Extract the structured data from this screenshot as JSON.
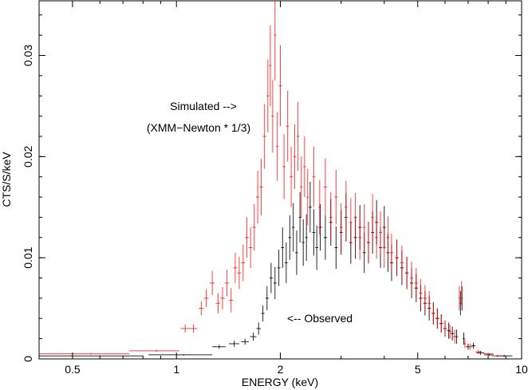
{
  "chart_data": {
    "type": "scatter",
    "title": "",
    "xlabel": "ENERGY (keV)",
    "ylabel": "CTS/S/keV",
    "xscale": "log",
    "xlim": [
      0.4,
      10
    ],
    "ylim": [
      0,
      0.0354
    ],
    "xticks": [
      {
        "v": 0.5,
        "label": "0.5"
      },
      {
        "v": 1,
        "label": "1"
      },
      {
        "v": 2,
        "label": "2"
      },
      {
        "v": 5,
        "label": "5"
      },
      {
        "v": 10,
        "label": "10"
      }
    ],
    "yticks": [
      {
        "v": 0,
        "label": "0"
      },
      {
        "v": 0.01,
        "label": "0.01"
      },
      {
        "v": 0.02,
        "label": "0.02"
      },
      {
        "v": 0.03,
        "label": "0.03"
      }
    ],
    "grid": false,
    "point_format": [
      "energy",
      "energy_halfwidth",
      "rate",
      "rate_error"
    ],
    "annotations": [
      {
        "text": "Simulated -->",
        "at_energy": 1.4,
        "at_rate": 0.025
      },
      {
        "text": "(XMM−Newton * 1/3)",
        "at_energy": 1.37,
        "at_rate": 0.0229
      },
      {
        "text": "<-- Observed",
        "at_energy": 2.4,
        "at_rate": 0.0039
      }
    ],
    "series": [
      {
        "color": "#000000",
        "points": [
          [
            0.6,
            0.2,
            0.0003,
            5e-05
          ],
          [
            1.05,
            0.22,
            0.0004,
            6e-05
          ],
          [
            1.33,
            0.06,
            0.0012,
            0.0002
          ],
          [
            1.47,
            0.05,
            0.0015,
            0.0003
          ],
          [
            1.58,
            0.04,
            0.0017,
            0.0003
          ],
          [
            1.67,
            0.035,
            0.0022,
            0.0004
          ],
          [
            1.73,
            0.025,
            0.003,
            0.0006
          ],
          [
            1.78,
            0.02,
            0.0045,
            0.0008
          ],
          [
            1.83,
            0.02,
            0.006,
            0.0012
          ],
          [
            1.88,
            0.02,
            0.008,
            0.0015
          ],
          [
            1.93,
            0.02,
            0.0075,
            0.0016
          ],
          [
            1.98,
            0.02,
            0.009,
            0.0018
          ],
          [
            2.03,
            0.02,
            0.011,
            0.002
          ],
          [
            2.08,
            0.02,
            0.0095,
            0.002
          ],
          [
            2.13,
            0.02,
            0.012,
            0.0022
          ],
          [
            2.18,
            0.02,
            0.013,
            0.0024
          ],
          [
            2.23,
            0.02,
            0.0105,
            0.0022
          ],
          [
            2.28,
            0.02,
            0.014,
            0.0025
          ],
          [
            2.33,
            0.02,
            0.0115,
            0.0023
          ],
          [
            2.38,
            0.02,
            0.012,
            0.0023
          ],
          [
            2.44,
            0.025,
            0.015,
            0.0025
          ],
          [
            2.5,
            0.025,
            0.0125,
            0.0023
          ],
          [
            2.55,
            0.025,
            0.011,
            0.0022
          ],
          [
            2.61,
            0.03,
            0.013,
            0.0023
          ],
          [
            2.7,
            0.03,
            0.012,
            0.0022
          ],
          [
            2.8,
            0.03,
            0.0135,
            0.0023
          ],
          [
            2.9,
            0.03,
            0.011,
            0.0021
          ],
          [
            3.0,
            0.03,
            0.0125,
            0.0022
          ],
          [
            3.1,
            0.03,
            0.014,
            0.0024
          ],
          [
            3.2,
            0.03,
            0.0115,
            0.0021
          ],
          [
            3.3,
            0.035,
            0.012,
            0.0021
          ],
          [
            3.4,
            0.035,
            0.013,
            0.0022
          ],
          [
            3.5,
            0.035,
            0.0105,
            0.002
          ],
          [
            3.6,
            0.035,
            0.0115,
            0.002
          ],
          [
            3.7,
            0.035,
            0.0125,
            0.0021
          ],
          [
            3.8,
            0.04,
            0.0135,
            0.0022
          ],
          [
            3.9,
            0.04,
            0.011,
            0.002
          ],
          [
            4.0,
            0.04,
            0.013,
            0.0021
          ],
          [
            4.1,
            0.04,
            0.0105,
            0.0019
          ],
          [
            4.2,
            0.045,
            0.0095,
            0.0018
          ],
          [
            4.35,
            0.05,
            0.01,
            0.0018
          ],
          [
            4.5,
            0.05,
            0.009,
            0.0017
          ],
          [
            4.65,
            0.05,
            0.0085,
            0.0016
          ],
          [
            4.8,
            0.05,
            0.0075,
            0.0015
          ],
          [
            4.95,
            0.06,
            0.007,
            0.0014
          ],
          [
            5.1,
            0.06,
            0.006,
            0.0013
          ],
          [
            5.25,
            0.06,
            0.0055,
            0.0012
          ],
          [
            5.4,
            0.06,
            0.005,
            0.0012
          ],
          [
            5.55,
            0.06,
            0.0045,
            0.0011
          ],
          [
            5.7,
            0.07,
            0.004,
            0.001
          ],
          [
            5.85,
            0.07,
            0.0035,
            0.0009
          ],
          [
            6.0,
            0.07,
            0.003,
            0.0008
          ],
          [
            6.15,
            0.07,
            0.0028,
            0.0008
          ],
          [
            6.3,
            0.07,
            0.0025,
            0.0007
          ],
          [
            6.48,
            0.06,
            0.0022,
            0.0007
          ],
          [
            6.65,
            0.03,
            0.0055,
            0.0012
          ],
          [
            6.72,
            0.03,
            0.006,
            0.0012
          ],
          [
            6.8,
            0.05,
            0.002,
            0.0006
          ],
          [
            7.0,
            0.1,
            0.0012,
            0.0003
          ],
          [
            7.25,
            0.1,
            0.0013,
            0.0003
          ],
          [
            7.6,
            0.2,
            0.0006,
            0.0002
          ],
          [
            8.05,
            0.25,
            0.0004,
            0.0001
          ],
          [
            8.9,
            0.5,
            0.0003,
            0.0001
          ]
        ]
      },
      {
        "color": "#ff0000",
        "points": [
          [
            0.565,
            0.165,
            0.0005,
            8e-05
          ],
          [
            0.875,
            0.145,
            0.0008,
            0.0001
          ],
          [
            1.06,
            0.03,
            0.003,
            0.0004
          ],
          [
            1.12,
            0.03,
            0.003,
            0.0004
          ],
          [
            1.18,
            0.02,
            0.005,
            0.0007
          ],
          [
            1.22,
            0.02,
            0.006,
            0.0009
          ],
          [
            1.27,
            0.02,
            0.0075,
            0.0012
          ],
          [
            1.32,
            0.02,
            0.0055,
            0.001
          ],
          [
            1.36,
            0.02,
            0.006,
            0.0011
          ],
          [
            1.4,
            0.02,
            0.0075,
            0.0013
          ],
          [
            1.44,
            0.02,
            0.0058,
            0.0012
          ],
          [
            1.48,
            0.02,
            0.009,
            0.0015
          ],
          [
            1.52,
            0.02,
            0.0085,
            0.0016
          ],
          [
            1.56,
            0.02,
            0.0095,
            0.0018
          ],
          [
            1.6,
            0.02,
            0.012,
            0.002
          ],
          [
            1.64,
            0.02,
            0.011,
            0.002
          ],
          [
            1.68,
            0.02,
            0.013,
            0.0023
          ],
          [
            1.72,
            0.02,
            0.016,
            0.0026
          ],
          [
            1.76,
            0.02,
            0.017,
            0.0028
          ],
          [
            1.8,
            0.02,
            0.022,
            0.0032
          ],
          [
            1.84,
            0.015,
            0.026,
            0.0036
          ],
          [
            1.87,
            0.015,
            0.029,
            0.004
          ],
          [
            1.9,
            0.015,
            0.024,
            0.0036
          ],
          [
            1.93,
            0.015,
            0.032,
            0.0045
          ],
          [
            1.96,
            0.015,
            0.021,
            0.0034
          ],
          [
            2.0,
            0.02,
            0.027,
            0.004
          ],
          [
            2.05,
            0.02,
            0.019,
            0.0032
          ],
          [
            2.1,
            0.02,
            0.023,
            0.0035
          ],
          [
            2.15,
            0.02,
            0.018,
            0.003
          ],
          [
            2.2,
            0.02,
            0.02,
            0.0032
          ],
          [
            2.25,
            0.02,
            0.022,
            0.0034
          ],
          [
            2.3,
            0.02,
            0.017,
            0.003
          ],
          [
            2.35,
            0.02,
            0.019,
            0.003
          ],
          [
            2.4,
            0.02,
            0.016,
            0.0028
          ],
          [
            2.5,
            0.025,
            0.018,
            0.003
          ],
          [
            2.6,
            0.025,
            0.015,
            0.0027
          ],
          [
            2.7,
            0.03,
            0.017,
            0.0028
          ],
          [
            2.8,
            0.03,
            0.014,
            0.0025
          ],
          [
            2.9,
            0.03,
            0.016,
            0.0027
          ],
          [
            3.0,
            0.03,
            0.013,
            0.0024
          ],
          [
            3.1,
            0.03,
            0.015,
            0.0026
          ],
          [
            3.2,
            0.03,
            0.0135,
            0.0024
          ],
          [
            3.3,
            0.035,
            0.014,
            0.0024
          ],
          [
            3.4,
            0.035,
            0.012,
            0.0022
          ],
          [
            3.5,
            0.035,
            0.013,
            0.0023
          ],
          [
            3.6,
            0.035,
            0.0115,
            0.0021
          ],
          [
            3.7,
            0.035,
            0.014,
            0.0023
          ],
          [
            3.8,
            0.04,
            0.012,
            0.0021
          ],
          [
            3.9,
            0.04,
            0.0125,
            0.0021
          ],
          [
            4.0,
            0.04,
            0.011,
            0.002
          ],
          [
            4.1,
            0.04,
            0.012,
            0.0021
          ],
          [
            4.2,
            0.045,
            0.0105,
            0.0019
          ],
          [
            4.35,
            0.05,
            0.01,
            0.0018
          ],
          [
            4.5,
            0.05,
            0.0095,
            0.0017
          ],
          [
            4.65,
            0.05,
            0.0085,
            0.0016
          ],
          [
            4.8,
            0.05,
            0.008,
            0.0016
          ],
          [
            4.95,
            0.06,
            0.0075,
            0.0015
          ],
          [
            5.1,
            0.06,
            0.0065,
            0.0014
          ],
          [
            5.25,
            0.06,
            0.006,
            0.0013
          ],
          [
            5.4,
            0.06,
            0.0055,
            0.0012
          ],
          [
            5.55,
            0.06,
            0.0045,
            0.0011
          ],
          [
            5.7,
            0.07,
            0.004,
            0.001
          ],
          [
            5.85,
            0.07,
            0.0035,
            0.0009
          ],
          [
            6.0,
            0.07,
            0.003,
            0.0008
          ],
          [
            6.2,
            0.07,
            0.0027,
            0.0007
          ],
          [
            6.4,
            0.07,
            0.0022,
            0.0007
          ],
          [
            6.6,
            0.03,
            0.006,
            0.0012
          ],
          [
            6.7,
            0.03,
            0.0065,
            0.0012
          ],
          [
            6.85,
            0.05,
            0.0015,
            0.0004
          ],
          [
            7.1,
            0.1,
            0.0012,
            0.0003
          ],
          [
            7.5,
            0.15,
            0.0007,
            0.0002
          ],
          [
            8.0,
            0.25,
            0.0005,
            0.0001
          ],
          [
            8.5,
            0.3,
            0.0003,
            0.0001
          ]
        ]
      }
    ]
  }
}
